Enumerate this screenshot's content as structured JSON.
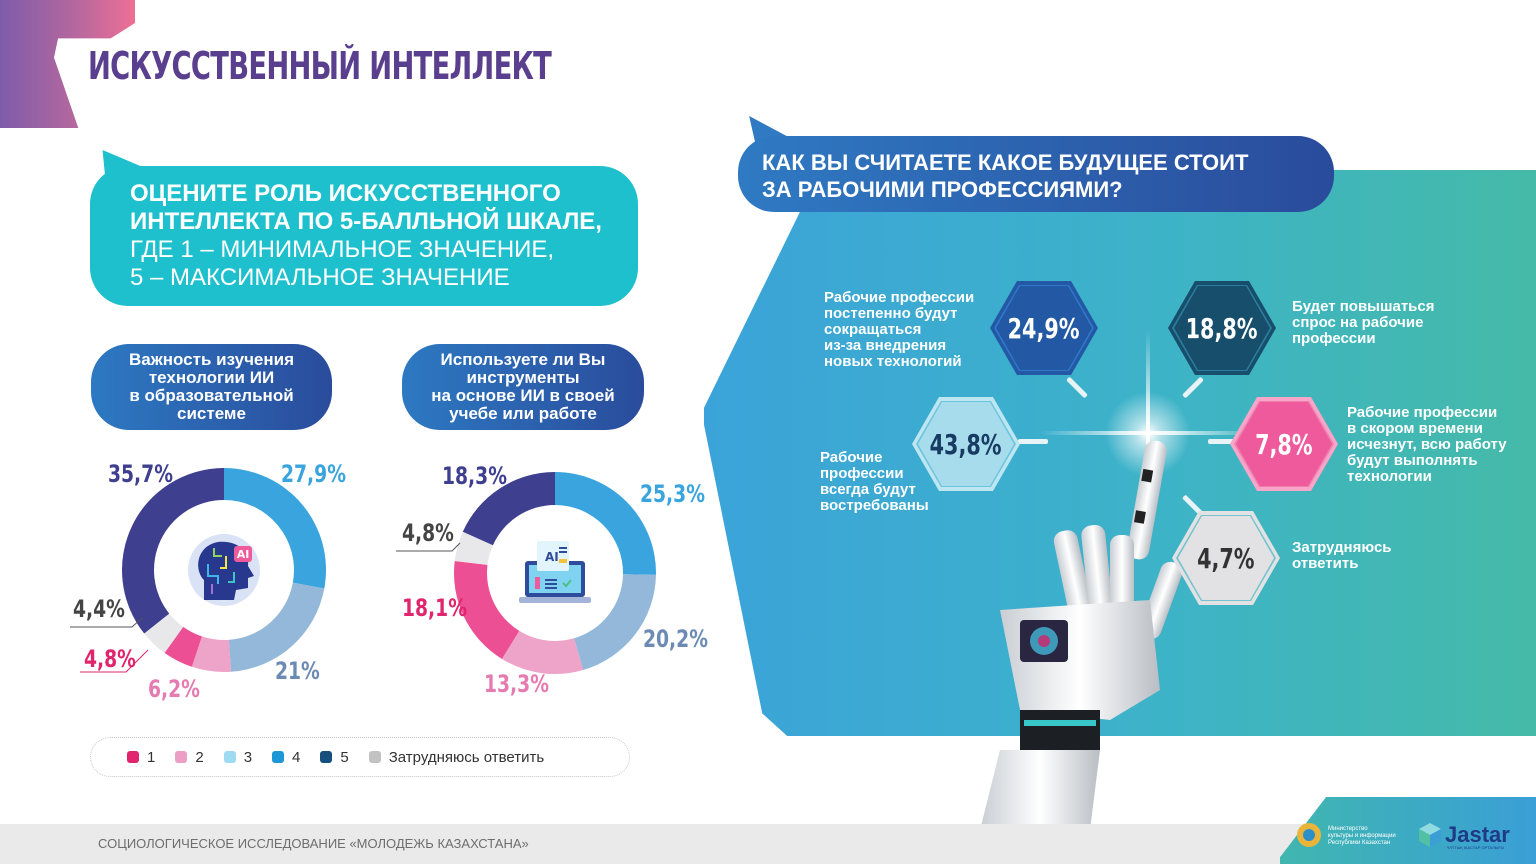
{
  "header": {
    "title": "ИСКУССТВЕННЫЙ ИНТЕЛЛЕКТ"
  },
  "left_question": {
    "lines_bold": [
      "ОЦЕНИТЕ РОЛЬ ИСКУССТВЕННОГО",
      "ИНТЕЛЛЕКТА ПО 5-БАЛЛЬНОЙ ШКАЛЕ,"
    ],
    "lines_regular": [
      "ГДЕ 1 – МИНИМАЛЬНОЕ ЗНАЧЕНИЕ,",
      "5 – МАКСИМАЛЬНОЕ ЗНАЧЕНИЕ"
    ]
  },
  "chart1": {
    "title_lines": [
      "Важность изучения",
      "технологии ИИ",
      "в образовательной",
      "системе"
    ],
    "icon": "ai-head-icon",
    "labels": {
      "r5": "35,7%",
      "r4": "27,9%",
      "r3": "21%",
      "r2": "6,2%",
      "r1": "4,8%",
      "na": "4,4%"
    }
  },
  "chart2": {
    "title_lines": [
      "Используете ли Вы",
      "инструменты",
      "на основе ИИ в своей",
      "учебе или работе"
    ],
    "icon": "ai-laptop-icon",
    "labels": {
      "r5": "18,3%",
      "r4": "25,3%",
      "r3": "20,2%",
      "r2": "13,3%",
      "r1": "18,1%",
      "na": "4,8%"
    }
  },
  "legend": {
    "items": [
      {
        "label": "1",
        "color": "#e0246e"
      },
      {
        "label": "2",
        "color": "#ec9ec4"
      },
      {
        "label": "3",
        "color": "#9edbf2"
      },
      {
        "label": "4",
        "color": "#1e97d6"
      },
      {
        "label": "5",
        "color": "#164f7c"
      },
      {
        "label": "Затрудняюсь ответить",
        "color": "#c2c2c2"
      }
    ]
  },
  "right_question": {
    "lines": [
      "КАК ВЫ СЧИТАЕТЕ КАКОЕ БУДУЩЕЕ СТОИТ",
      "ЗА РАБОЧИМИ ПРОФЕССИЯМИ?"
    ]
  },
  "future_options": [
    {
      "value": "24,9%",
      "lines": [
        "Рабочие профессии",
        "постепенно будут",
        "сокращаться",
        "из-за внедрения",
        "новых технологий"
      ],
      "color": "#2358a5"
    },
    {
      "value": "18,8%",
      "lines": [
        "Будет повышаться",
        "спрос на рабочие",
        "профессии"
      ],
      "color": "#174e6c"
    },
    {
      "value": "43,8%",
      "lines": [
        "Рабочие",
        "профессии",
        "всегда будут",
        "востребованы"
      ],
      "color": "#a7dcec"
    },
    {
      "value": "7,8%",
      "lines": [
        "Рабочие профессии",
        "в скором времени",
        "исчезнут, всю работу",
        "будут выполнять",
        "технологии"
      ],
      "color": "#ee5a9c"
    },
    {
      "value": "4,7%",
      "lines": [
        "Затрудняюсь",
        "ответить"
      ],
      "color": "#e2e2e4"
    }
  ],
  "footer": {
    "text": "СОЦИОЛОГИЧЕСКОЕ ИССЛЕДОВАНИЕ «МОЛОДЕЖЬ КАЗАХСТАНА»",
    "ministry_lines": [
      "Министерство",
      "культуры и информации",
      "Республики Казахстан"
    ],
    "brand": "Jastar",
    "brand_sub": "ҰЛТТЫҚ ЖАСТАР ОРТАЛЫҒЫ"
  },
  "chart_data": [
    {
      "type": "pie",
      "title": "Важность изучения технологии ИИ в образовательной системе",
      "categories": [
        "5",
        "4",
        "3",
        "2",
        "1",
        "Затрудняюсь ответить"
      ],
      "values": [
        35.7,
        27.9,
        21.0,
        6.2,
        4.8,
        4.4
      ],
      "colors": [
        "#3f3f8f",
        "#39a4dd",
        "#93b8da",
        "#eea3c8",
        "#ec4f93",
        "#e8e8ea"
      ],
      "legend_position": "bottom",
      "donut": true
    },
    {
      "type": "pie",
      "title": "Используете ли Вы инструменты на основе ИИ в своей учебе или работе",
      "categories": [
        "5",
        "4",
        "3",
        "2",
        "1",
        "Затрудняюсь ответить"
      ],
      "values": [
        18.3,
        25.3,
        20.2,
        13.3,
        18.1,
        4.8
      ],
      "colors": [
        "#3f3f8f",
        "#39a4dd",
        "#93b8da",
        "#eea3c8",
        "#ec4f93",
        "#e8e8ea"
      ],
      "legend_position": "bottom",
      "donut": true
    },
    {
      "type": "bar",
      "title": "Как вы считаете какое будущее стоит за рабочими профессиями?",
      "categories": [
        "Рабочие профессии всегда будут востребованы",
        "Рабочие профессии постепенно будут сокращаться из-за внедрения новых технологий",
        "Будет повышаться спрос на рабочие профессии",
        "Рабочие профессии в скором времени исчезнут, всю работу будут выполнять технологии",
        "Затрудняюсь ответить"
      ],
      "values": [
        43.8,
        24.9,
        18.8,
        7.8,
        4.7
      ],
      "unit": "%"
    }
  ]
}
